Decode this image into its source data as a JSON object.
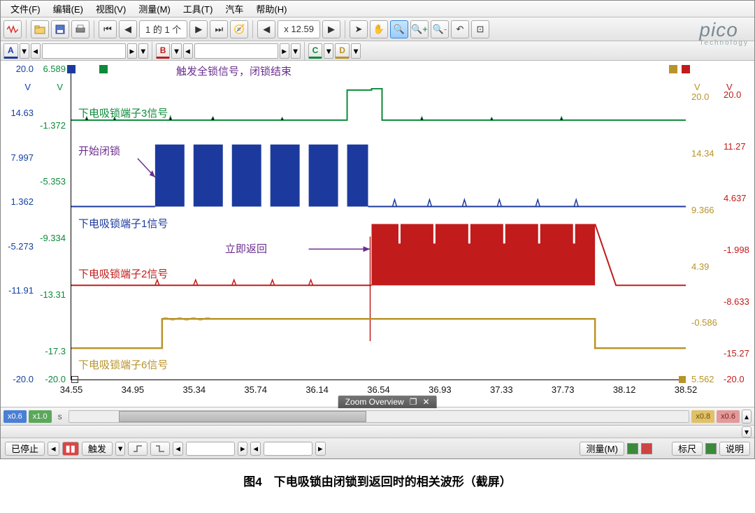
{
  "menu": {
    "file": "文件(F)",
    "edit": "编辑(E)",
    "view": "视图(V)",
    "measure": "测量(M)",
    "tool": "工具(T)",
    "car": "汽车",
    "help": "帮助(H)"
  },
  "toolbar1": {
    "page_of": "1 的 1 个",
    "zoom_value": "x 12.59"
  },
  "channels": {
    "A": "A",
    "B": "B",
    "C": "C",
    "D": "D"
  },
  "logo": {
    "brand": "pico",
    "sub": "Technology"
  },
  "chart": {
    "left_axis_A": {
      "color": "#1340a0",
      "unit": "V",
      "ticks": [
        "20.0",
        "14.63",
        "7.997",
        "1.362",
        "-5.273",
        "-11.91",
        "",
        "-20.0"
      ]
    },
    "left_axis_B": {
      "color": "#0d8a3a",
      "unit": "V",
      "ticks": [
        "6.589",
        "",
        "-1.372",
        "",
        "-5.353",
        "",
        "-9.334",
        "",
        "-13.31",
        "",
        "-17.3",
        "-20.0"
      ]
    },
    "right_axis_C": {
      "color": "#b8932a",
      "unit": "V",
      "ticks": [
        "",
        "20.0",
        "",
        "14.34",
        "",
        "9.366",
        "",
        "4.39",
        "",
        "-0.586",
        "",
        "5.562"
      ]
    },
    "right_axis_D": {
      "color": "#c11b1b",
      "unit": "V",
      "ticks": [
        "",
        "20.0",
        "",
        "11.27",
        "",
        "4.637",
        "",
        "-1.998",
        "",
        "-8.633",
        "",
        "-15.27",
        "-20.0"
      ]
    },
    "x_ticks": [
      "34.55",
      "34.95",
      "35.34",
      "35.74",
      "36.14",
      "36.54",
      "36.93",
      "37.33",
      "37.73",
      "38.12",
      "38.52"
    ],
    "x_unit": "s",
    "annotations": {
      "trigger_lock": "触发全锁信号，闭锁结束",
      "sig3": "下电吸锁端子3信号",
      "start_lock": "开始闭锁",
      "sig1": "下电吸锁端子1信号",
      "return_now": "立即返回",
      "sig2": "下电吸锁端子2信号",
      "sig6": "下电吸锁端子6信号"
    },
    "zoom_overview": "Zoom Overview",
    "colors": {
      "A": "#1c3a9e",
      "B": "#0d8a3a",
      "C": "#b8932a",
      "D": "#c11b1b",
      "purple": "#6b2e8f",
      "bg": "#ffffff"
    }
  },
  "bottom_badges": {
    "left1": "x0.6",
    "left2": "x1.0",
    "right1": "x0.8",
    "right2": "x0.6"
  },
  "status": {
    "stopped": "已停止",
    "trigger": "触发",
    "measure": "测量(M)",
    "ruler": "标尺",
    "notes": "说明"
  },
  "caption": "图4　下电吸锁由闭锁到返回时的相关波形（截屏）"
}
